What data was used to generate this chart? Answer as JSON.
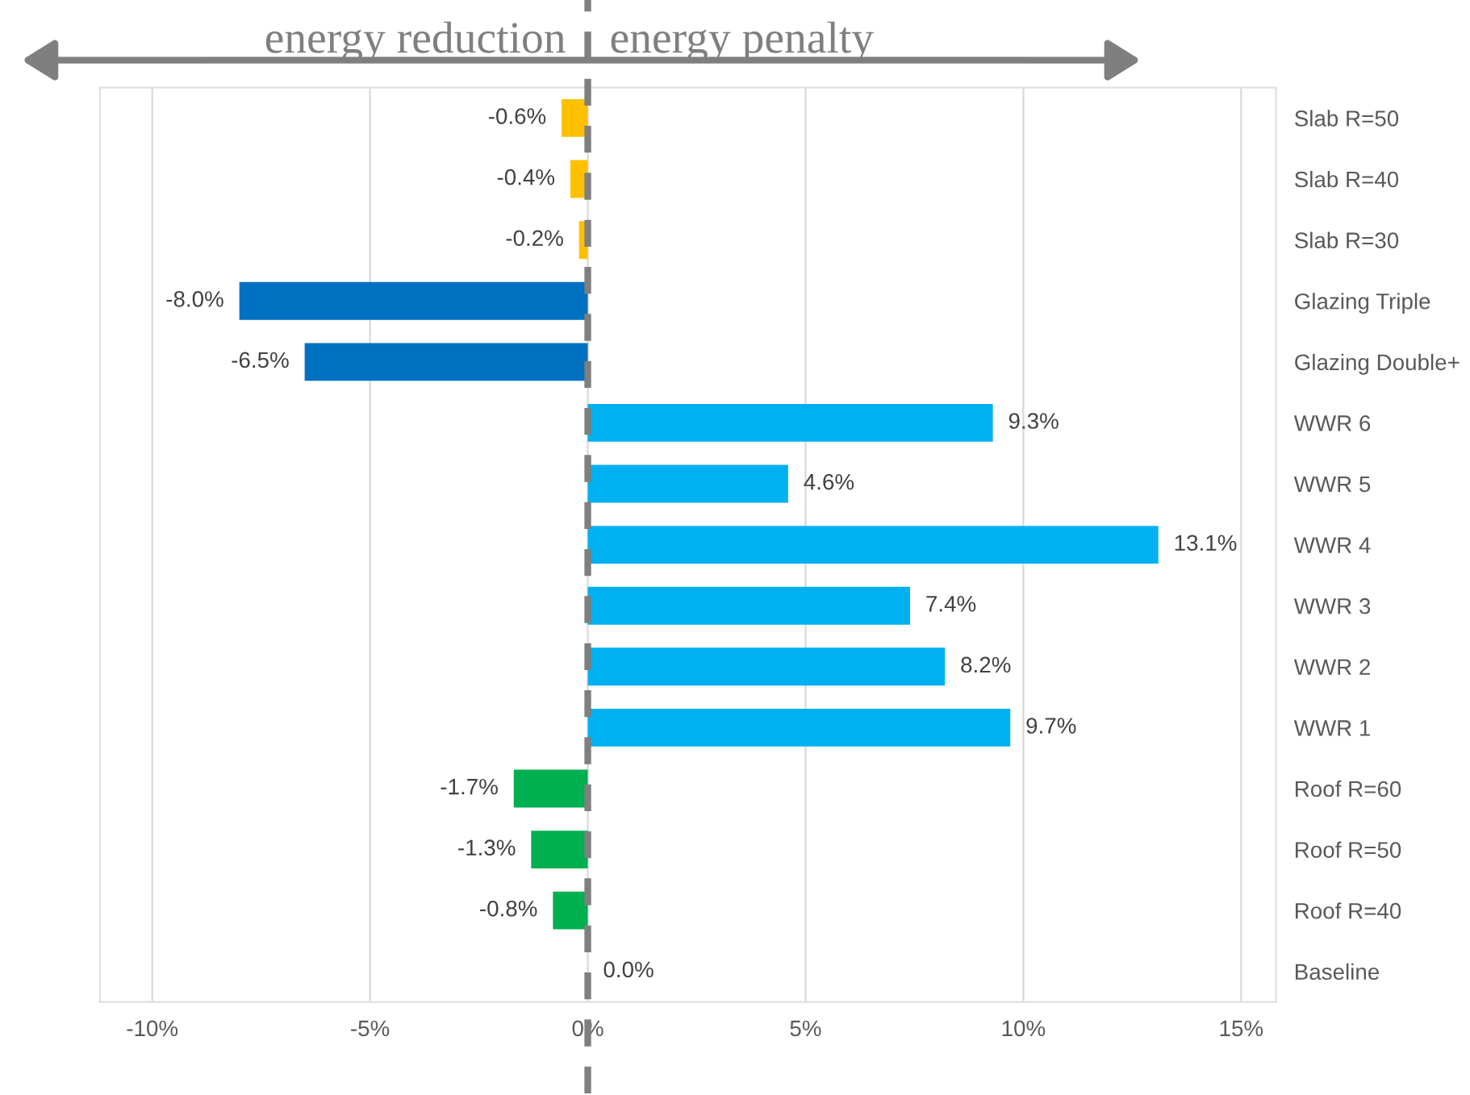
{
  "chart_data": {
    "type": "bar",
    "orientation": "horizontal",
    "categories": [
      "Slab R=50",
      "Slab R=40",
      "Slab R=30",
      "Glazing Triple",
      "Glazing Double+",
      "WWR 6",
      "WWR 5",
      "WWR 4",
      "WWR 3",
      "WWR 2",
      "WWR 1",
      "Roof R=60",
      "Roof R=50",
      "Roof R=40",
      "Baseline"
    ],
    "values": [
      -0.6,
      -0.4,
      -0.2,
      -8.0,
      -6.5,
      9.3,
      4.6,
      13.1,
      7.4,
      8.2,
      9.7,
      -1.7,
      -1.3,
      -0.8,
      0.0
    ],
    "colors": [
      "#ffc000",
      "#ffc000",
      "#ffc000",
      "#0070c0",
      "#0070c0",
      "#00b0f0",
      "#00b0f0",
      "#00b0f0",
      "#00b0f0",
      "#00b0f0",
      "#00b0f0",
      "#00b050",
      "#00b050",
      "#00b050",
      "#00b050"
    ],
    "value_labels": [
      "-0.6%",
      "-0.4%",
      "-0.2%",
      "-8.0%",
      "-6.5%",
      "9.3%",
      "4.6%",
      "13.1%",
      "7.4%",
      "8.2%",
      "9.7%",
      "-1.7%",
      "-1.3%",
      "-0.8%",
      "0.0%"
    ],
    "xlim": [
      -11.2,
      15.8
    ],
    "xticks": [
      {
        "value": -10,
        "label": "-10%"
      },
      {
        "value": -5,
        "label": "-5%"
      },
      {
        "value": 0,
        "label": "0%"
      },
      {
        "value": 5,
        "label": "5%"
      },
      {
        "value": 10,
        "label": "10%"
      },
      {
        "value": 15,
        "label": "15%"
      }
    ],
    "grid": "x",
    "ref_lines": [
      {
        "axis": "x",
        "value": 0,
        "color": "#7f7f7f",
        "line_style": "dashed"
      }
    ],
    "annotations": [
      "energy reduction",
      "energy penalty"
    ]
  }
}
